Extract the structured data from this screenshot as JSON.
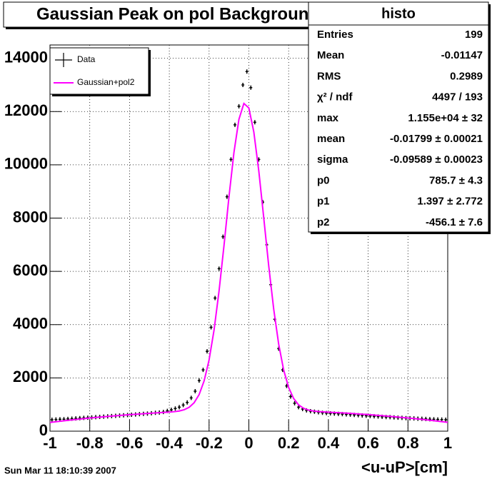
{
  "chart_data": {
    "type": "scatter",
    "title": "Gaussian Peak on pol Background",
    "x_label": "<u-uP>[cm]",
    "date_stamp": "Sun Mar 11 18:10:39 2007",
    "xlim": [
      -1,
      1
    ],
    "ylim": [
      0,
      14500
    ],
    "xticks": [
      -1,
      -0.8,
      -0.6,
      -0.4,
      -0.2,
      0,
      0.2,
      0.4,
      0.6,
      0.8,
      1
    ],
    "yticks": [
      0,
      2000,
      4000,
      6000,
      8000,
      10000,
      12000,
      14000
    ],
    "grid": true,
    "legend": "top-left",
    "series": [
      {
        "name": "Data",
        "type": "scatter",
        "color": "#000000",
        "x": [
          -0.99,
          -0.97,
          -0.95,
          -0.93,
          -0.91,
          -0.89,
          -0.87,
          -0.85,
          -0.83,
          -0.81,
          -0.79,
          -0.77,
          -0.75,
          -0.73,
          -0.71,
          -0.69,
          -0.67,
          -0.65,
          -0.63,
          -0.61,
          -0.59,
          -0.57,
          -0.55,
          -0.53,
          -0.51,
          -0.49,
          -0.47,
          -0.45,
          -0.43,
          -0.41,
          -0.39,
          -0.37,
          -0.35,
          -0.33,
          -0.31,
          -0.29,
          -0.27,
          -0.25,
          -0.23,
          -0.21,
          -0.19,
          -0.17,
          -0.15,
          -0.13,
          -0.11,
          -0.09,
          -0.07,
          -0.05,
          -0.03,
          -0.01,
          0.01,
          0.03,
          0.05,
          0.07,
          0.09,
          0.11,
          0.13,
          0.15,
          0.17,
          0.19,
          0.21,
          0.23,
          0.25,
          0.27,
          0.29,
          0.31,
          0.33,
          0.35,
          0.37,
          0.39,
          0.41,
          0.43,
          0.45,
          0.47,
          0.49,
          0.51,
          0.53,
          0.55,
          0.57,
          0.59,
          0.61,
          0.63,
          0.65,
          0.67,
          0.69,
          0.71,
          0.73,
          0.75,
          0.77,
          0.79,
          0.81,
          0.83,
          0.85,
          0.87,
          0.89,
          0.91,
          0.93,
          0.95,
          0.97,
          0.99
        ],
        "values": [
          430,
          440,
          445,
          450,
          460,
          470,
          480,
          490,
          500,
          505,
          515,
          525,
          535,
          545,
          555,
          565,
          575,
          585,
          595,
          605,
          615,
          625,
          640,
          650,
          660,
          675,
          690,
          700,
          720,
          760,
          800,
          850,
          900,
          980,
          1080,
          1250,
          1500,
          1900,
          2300,
          3000,
          3900,
          5000,
          6100,
          7300,
          8800,
          10200,
          11500,
          12200,
          13000,
          13500,
          12900,
          11600,
          10200,
          8600,
          7000,
          5500,
          4200,
          3100,
          2300,
          1700,
          1300,
          1050,
          900,
          830,
          780,
          750,
          730,
          710,
          690,
          680,
          670,
          660,
          650,
          640,
          630,
          620,
          610,
          600,
          590,
          580,
          570,
          560,
          550,
          540,
          530,
          525,
          515,
          505,
          500,
          490,
          485,
          480,
          470,
          465,
          460,
          450,
          445,
          440,
          435,
          430
        ]
      },
      {
        "name": "Gaussian+pol2",
        "type": "line",
        "color": "#ff00ff",
        "x": [
          -1,
          -0.9,
          -0.8,
          -0.7,
          -0.6,
          -0.5,
          -0.4,
          -0.375,
          -0.35,
          -0.325,
          -0.3,
          -0.275,
          -0.25,
          -0.225,
          -0.2,
          -0.175,
          -0.15,
          -0.125,
          -0.1,
          -0.075,
          -0.05,
          -0.025,
          0,
          0.025,
          0.05,
          0.075,
          0.1,
          0.125,
          0.15,
          0.175,
          0.2,
          0.225,
          0.25,
          0.275,
          0.3,
          0.325,
          0.35,
          0.375,
          0.4,
          0.5,
          0.6,
          0.7,
          0.8,
          0.9,
          1
        ],
        "values": [
          328,
          415,
          493,
          561,
          621,
          671,
          716,
          732,
          758,
          806,
          897,
          1070,
          1374,
          1886,
          2674,
          3797,
          5256,
          6969,
          8797,
          10462,
          11708,
          12304,
          12135,
          11231,
          9769,
          8001,
          6199,
          4579,
          3265,
          2296,
          1640,
          1229,
          989,
          860,
          792,
          757,
          737,
          725,
          714,
          672,
          622,
          563,
          495,
          418,
          331
        ]
      }
    ],
    "stats_box": {
      "title": "histo",
      "rows": [
        [
          "Entries",
          "199"
        ],
        [
          "Mean",
          "-0.01147"
        ],
        [
          "RMS",
          "0.2989"
        ],
        [
          "χ² / ndf",
          "4497 / 193"
        ],
        [
          "max",
          "1.155e+04 ± 32"
        ],
        [
          "mean",
          "-0.01799 ± 0.00021"
        ],
        [
          "sigma",
          "-0.09589 ± 0.00023"
        ],
        [
          "p0",
          "785.7 ± 4.3"
        ],
        [
          "p1",
          "1.397 ± 2.772"
        ],
        [
          "p2",
          "-456.1 ± 7.6"
        ]
      ]
    }
  }
}
